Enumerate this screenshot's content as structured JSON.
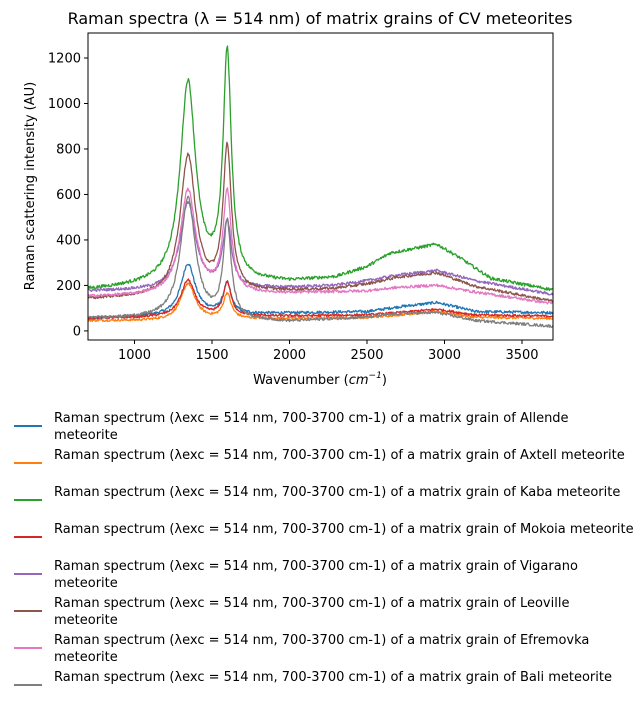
{
  "chart_data": {
    "type": "line",
    "title": "Raman spectra (λ = 514 nm) of matrix grains of CV meteorites",
    "xlabel": "Wavenumber (cm⁻¹)",
    "xlabel_base": "Wavenumber (",
    "xlabel_unit": "cm",
    "xlabel_exp": "−1",
    "xlabel_close": ")",
    "ylabel": "Raman scattering intensity (AU)",
    "xlim": [
      700,
      3700
    ],
    "ylim": [
      -40,
      1310
    ],
    "xticks": [
      1000,
      1500,
      2000,
      2500,
      3000,
      3500
    ],
    "yticks": [
      0,
      200,
      400,
      600,
      800,
      1000,
      1200
    ],
    "grid": false,
    "legend_position": "below",
    "series": [
      {
        "name": "Raman spectrum (λexc = 514 nm, 700-3700 cm-1) of a matrix grain of Allende meteorite",
        "color": "#1f77b4",
        "baseline": [
          [
            700,
            55
          ],
          [
            1200,
            65
          ],
          [
            1500,
            75
          ],
          [
            1800,
            75
          ],
          [
            2000,
            78
          ],
          [
            2500,
            85
          ],
          [
            2700,
            105
          ],
          [
            2950,
            125
          ],
          [
            3200,
            85
          ],
          [
            3700,
            80
          ]
        ],
        "peaks": [
          [
            1345,
            225,
            55
          ],
          [
            1598,
            130,
            30
          ]
        ],
        "noise": 6
      },
      {
        "name": "Raman spectrum (λexc = 514 nm, 700-3700 cm-1) of a matrix grain of Axtell meteorite",
        "color": "#ff7f0e",
        "baseline": [
          [
            700,
            45
          ],
          [
            1200,
            45
          ],
          [
            1500,
            50
          ],
          [
            2000,
            55
          ],
          [
            2500,
            58
          ],
          [
            2700,
            70
          ],
          [
            2950,
            85
          ],
          [
            3200,
            60
          ],
          [
            3700,
            55
          ]
        ],
        "peaks": [
          [
            1345,
            160,
            55
          ],
          [
            1598,
            110,
            30
          ]
        ],
        "noise": 5
      },
      {
        "name": "Raman spectrum (λexc = 514 nm, 700-3700 cm-1) of a matrix grain of Kaba meteorite",
        "color": "#2ca02c",
        "baseline": [
          [
            700,
            180
          ],
          [
            1200,
            205
          ],
          [
            1500,
            215
          ],
          [
            1800,
            215
          ],
          [
            2000,
            215
          ],
          [
            2300,
            235
          ],
          [
            2500,
            280
          ],
          [
            2650,
            340
          ],
          [
            2800,
            360
          ],
          [
            2950,
            380
          ],
          [
            3100,
            320
          ],
          [
            3300,
            230
          ],
          [
            3700,
            180
          ]
        ],
        "peaks": [
          [
            1345,
            880,
            60
          ],
          [
            1598,
            990,
            32
          ]
        ],
        "noise": 7
      },
      {
        "name": "Raman spectrum (λexc = 514 nm, 700-3700 cm-1) of a matrix grain of Mokoia meteorite",
        "color": "#d62728",
        "baseline": [
          [
            700,
            55
          ],
          [
            1200,
            60
          ],
          [
            1500,
            65
          ],
          [
            2000,
            65
          ],
          [
            2500,
            70
          ],
          [
            2700,
            80
          ],
          [
            2950,
            95
          ],
          [
            3200,
            70
          ],
          [
            3700,
            65
          ]
        ],
        "peaks": [
          [
            1345,
            160,
            55
          ],
          [
            1598,
            145,
            30
          ]
        ],
        "noise": 5
      },
      {
        "name": "Raman spectrum (λexc = 514 nm, 700-3700 cm-1) of a matrix grain of Vigarano meteorite",
        "color": "#9467bd",
        "baseline": [
          [
            700,
            175
          ],
          [
            1200,
            180
          ],
          [
            1500,
            185
          ],
          [
            2000,
            190
          ],
          [
            2300,
            200
          ],
          [
            2500,
            220
          ],
          [
            2700,
            245
          ],
          [
            2950,
            265
          ],
          [
            3200,
            220
          ],
          [
            3700,
            160
          ]
        ],
        "peaks": [
          [
            1345,
            380,
            60
          ],
          [
            1598,
            290,
            32
          ]
        ],
        "noise": 6
      },
      {
        "name": "Raman spectrum (λexc = 514 nm, 700-3700 cm-1) of a matrix grain of Leoville meteorite",
        "color": "#8c564b",
        "baseline": [
          [
            700,
            140
          ],
          [
            1200,
            150
          ],
          [
            1500,
            165
          ],
          [
            2000,
            175
          ],
          [
            2300,
            185
          ],
          [
            2500,
            205
          ],
          [
            2700,
            235
          ],
          [
            2950,
            255
          ],
          [
            3200,
            195
          ],
          [
            3700,
            130
          ]
        ],
        "peaks": [
          [
            1345,
            610,
            60
          ],
          [
            1598,
            630,
            32
          ]
        ],
        "noise": 6
      },
      {
        "name": "Raman spectrum (λexc = 514 nm, 700-3700 cm-1) of a matrix grain of Efremovka meteorite",
        "color": "#e377c2",
        "baseline": [
          [
            700,
            150
          ],
          [
            1200,
            155
          ],
          [
            1500,
            160
          ],
          [
            2000,
            165
          ],
          [
            2500,
            175
          ],
          [
            2700,
            190
          ],
          [
            2950,
            200
          ],
          [
            3200,
            170
          ],
          [
            3700,
            120
          ]
        ],
        "peaks": [
          [
            1345,
            460,
            60
          ],
          [
            1598,
            440,
            32
          ]
        ],
        "noise": 6
      },
      {
        "name": "Raman spectrum (λexc = 514 nm, 700-3700 cm-1) of a matrix grain of Bali meteorite",
        "color": "#7f7f7f",
        "baseline": [
          [
            700,
            55
          ],
          [
            1200,
            55
          ],
          [
            1500,
            50
          ],
          [
            2000,
            40
          ],
          [
            2500,
            60
          ],
          [
            2700,
            75
          ],
          [
            2950,
            80
          ],
          [
            3200,
            45
          ],
          [
            3700,
            20
          ]
        ],
        "peaks": [
          [
            1345,
            530,
            58
          ],
          [
            1598,
            420,
            30
          ]
        ],
        "noise": 6
      }
    ]
  }
}
